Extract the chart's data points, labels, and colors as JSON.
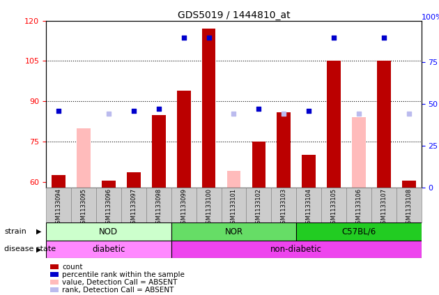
{
  "title": "GDS5019 / 1444810_at",
  "samples": [
    "GSM1133094",
    "GSM1133095",
    "GSM1133096",
    "GSM1133097",
    "GSM1133098",
    "GSM1133099",
    "GSM1133100",
    "GSM1133101",
    "GSM1133102",
    "GSM1133103",
    "GSM1133104",
    "GSM1133105",
    "GSM1133106",
    "GSM1133107",
    "GSM1133108"
  ],
  "count_values": [
    62.5,
    null,
    60.5,
    63.5,
    85,
    94,
    117,
    null,
    75,
    86,
    70,
    105,
    null,
    105,
    60.5
  ],
  "count_absent": [
    null,
    80,
    null,
    null,
    null,
    null,
    null,
    64,
    null,
    null,
    null,
    null,
    84,
    null,
    null
  ],
  "percentile_present": [
    46,
    null,
    null,
    46,
    47,
    90,
    90,
    null,
    47,
    null,
    46,
    90,
    null,
    90,
    null
  ],
  "percentile_absent": [
    null,
    null,
    44,
    null,
    null,
    null,
    null,
    44,
    null,
    44,
    null,
    null,
    44,
    null,
    44
  ],
  "ylim_left": [
    58,
    120
  ],
  "ylim_right": [
    0,
    100
  ],
  "yticks_left": [
    60,
    75,
    90,
    105,
    120
  ],
  "yticks_right": [
    0,
    25,
    50,
    75
  ],
  "ytick_right_top_label": "100%",
  "groups": [
    {
      "label": "NOD",
      "start": 0,
      "end": 5,
      "color": "#ccffcc"
    },
    {
      "label": "NOR",
      "start": 5,
      "end": 10,
      "color": "#66dd66"
    },
    {
      "label": "C57BL/6",
      "start": 10,
      "end": 15,
      "color": "#22cc22"
    }
  ],
  "disease_groups": [
    {
      "label": "diabetic",
      "start": 0,
      "end": 5,
      "color": "#ff88ff"
    },
    {
      "label": "non-diabetic",
      "start": 5,
      "end": 15,
      "color": "#ee44ee"
    }
  ],
  "color_count": "#bb0000",
  "color_percentile": "#0000cc",
  "color_absent_bar": "#ffbbbb",
  "color_absent_rank": "#bbbbee",
  "bar_width": 0.55,
  "marker_size": 18,
  "legend_items": [
    {
      "color": "#bb0000",
      "label": "count"
    },
    {
      "color": "#0000cc",
      "label": "percentile rank within the sample"
    },
    {
      "color": "#ffbbbb",
      "label": "value, Detection Call = ABSENT"
    },
    {
      "color": "#bbbbee",
      "label": "rank, Detection Call = ABSENT"
    }
  ]
}
